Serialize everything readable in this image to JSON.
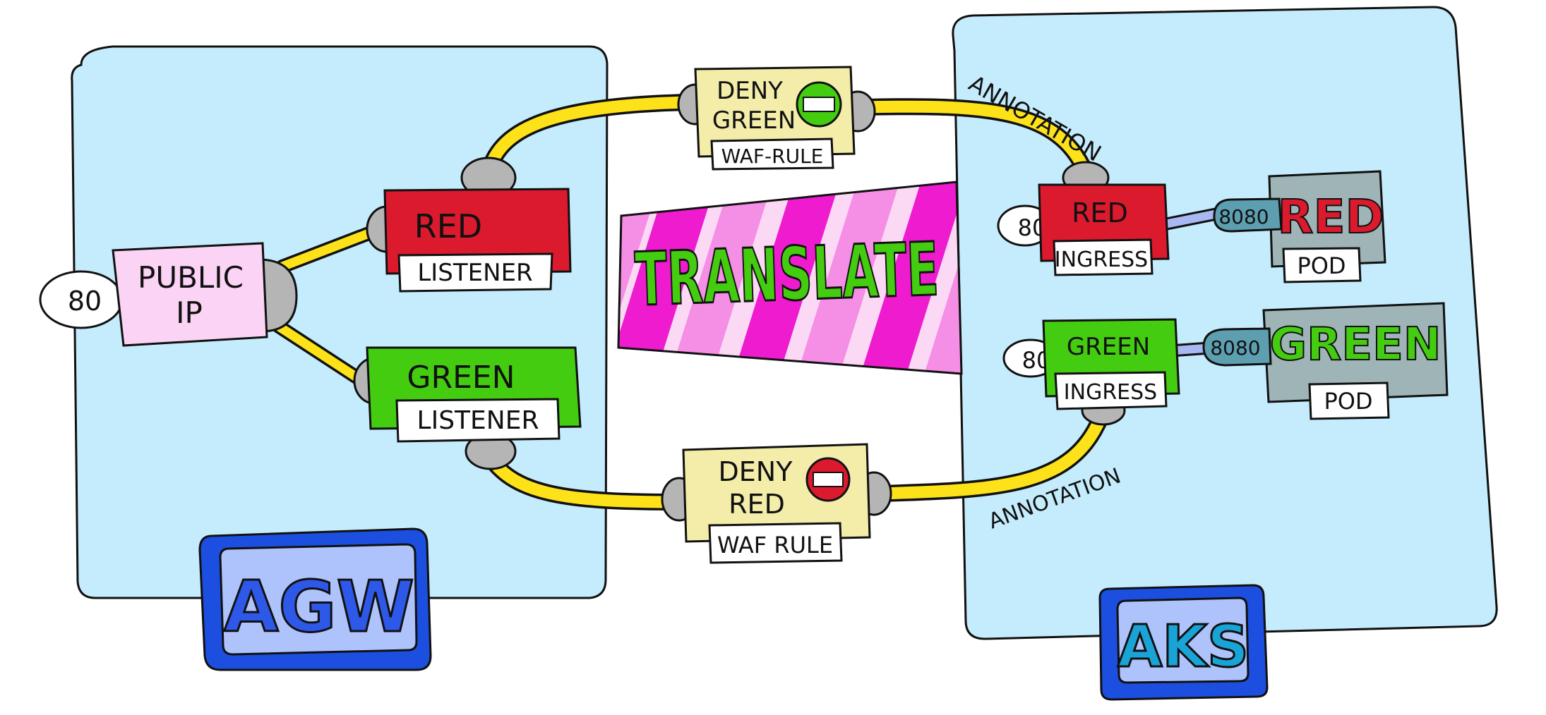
{
  "colors": {
    "panel": "#c5ecfc",
    "outline": "#111111",
    "red": "#dc1a2e",
    "green": "#44cc11",
    "pink": "#fbd3f5",
    "yellowBox": "#f4eda9",
    "pipe": "#fde21a",
    "gray": "#b5b5b5",
    "podGray": "#9fb4b6",
    "teal": "#5d9fb0",
    "blueFrame": "#1c4fe0",
    "blueInner": "#aec3fb",
    "link": "#a9b7f2",
    "magenta": "#ee1bcf",
    "lightMagenta": "#f58ee5",
    "palePink": "#fbd9f5"
  },
  "publicIp": {
    "port": "80",
    "line1": "PUBLIC",
    "line2": "IP"
  },
  "redListener": {
    "title": "RED",
    "tag": "LISTENER"
  },
  "greenListener": {
    "title": "GREEN",
    "tag": "LISTENER"
  },
  "wafTop": {
    "line1": "DENY",
    "line2": "GREEN",
    "tag": "WAF-RULE"
  },
  "wafBottom": {
    "line1": "DENY",
    "line2": "RED",
    "tag": "WAF RULE"
  },
  "translate": "TRANSLATE",
  "annotationTop": "ANNOTATION",
  "annotationBottom": "ANNOTATION",
  "redIngress": {
    "port": "80",
    "title": "RED",
    "tag": "INGRESS"
  },
  "greenIngress": {
    "port": "80",
    "title": "GREEN",
    "tag": "INGRESS"
  },
  "redPod": {
    "port": "8080",
    "title": "RED",
    "tag": "POD"
  },
  "greenPod": {
    "port": "8080",
    "title": "GREEN",
    "tag": "POD"
  },
  "agw": "AGW",
  "aks": "AKS"
}
